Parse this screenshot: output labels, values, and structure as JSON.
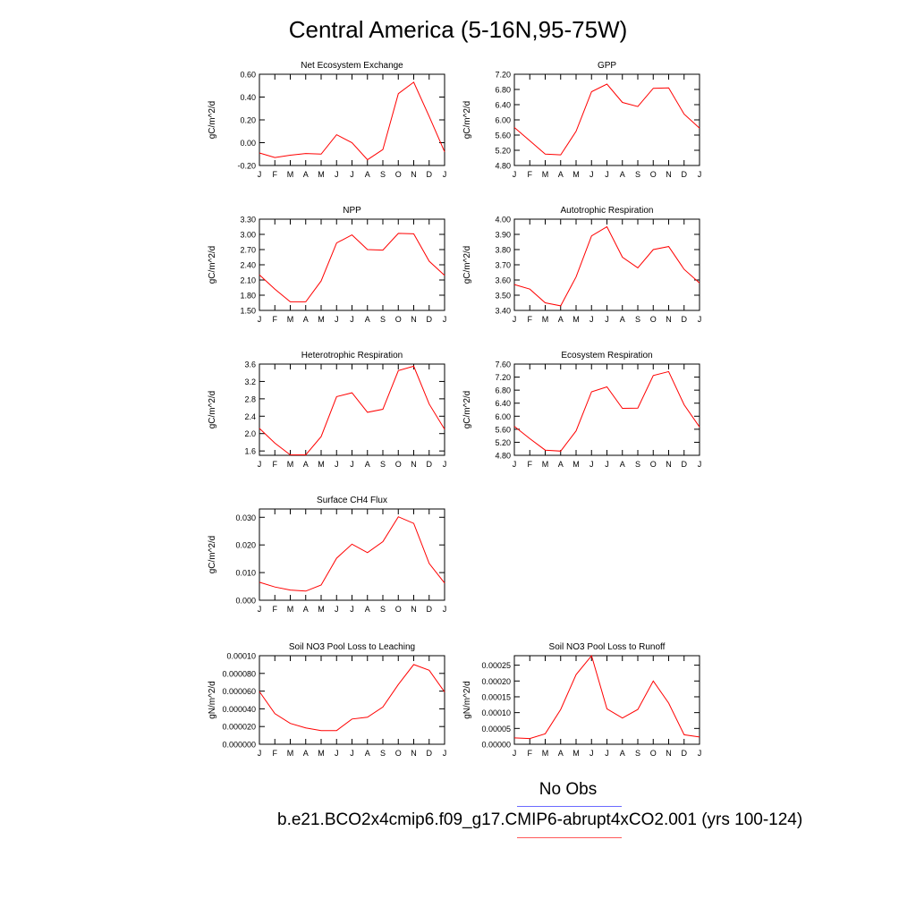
{
  "title": "Central America (5-16N,95-75W)",
  "legend": {
    "obs_label": "No Obs",
    "obs_color": "#6b6bff",
    "model_label": "b.e21.BCO2x4cmip6.f09_g17.CMIP6-abrupt4xCO2.001 (yrs 100-124)",
    "model_color": "#ff0000"
  },
  "chart_data": [
    {
      "type": "line",
      "title": "Net Ecosystem Exchange",
      "ylabel": "gC/m^2/d",
      "x": [
        "J",
        "F",
        "M",
        "A",
        "M",
        "J",
        "J",
        "A",
        "S",
        "O",
        "N",
        "D",
        "J"
      ],
      "ylim": [
        -0.2,
        0.6
      ],
      "yticks": [
        "-0.20",
        "0.00",
        "0.20",
        "0.40",
        "0.60"
      ],
      "series": [
        {
          "values": [
            -0.09,
            -0.13,
            -0.11,
            -0.095,
            -0.1,
            0.07,
            0.0,
            -0.15,
            -0.06,
            0.43,
            0.53,
            0.23,
            -0.08
          ]
        }
      ]
    },
    {
      "type": "line",
      "title": "GPP",
      "ylabel": "gC/m^2/d",
      "x": [
        "J",
        "F",
        "M",
        "A",
        "M",
        "J",
        "J",
        "A",
        "S",
        "O",
        "N",
        "D",
        "J"
      ],
      "ylim": [
        4.8,
        7.2
      ],
      "yticks": [
        "4.80",
        "5.20",
        "5.60",
        "6.00",
        "6.40",
        "6.80",
        "7.20"
      ],
      "series": [
        {
          "values": [
            5.8,
            5.45,
            5.1,
            5.08,
            5.7,
            6.74,
            6.94,
            6.46,
            6.35,
            6.83,
            6.84,
            6.15,
            5.78
          ]
        }
      ]
    },
    {
      "type": "line",
      "title": "NPP",
      "ylabel": "gC/m^2/d",
      "x": [
        "J",
        "F",
        "M",
        "A",
        "M",
        "J",
        "J",
        "A",
        "S",
        "O",
        "N",
        "D",
        "J"
      ],
      "ylim": [
        1.5,
        3.3
      ],
      "yticks": [
        "1.50",
        "1.80",
        "2.10",
        "2.40",
        "2.70",
        "3.00",
        "3.30"
      ],
      "series": [
        {
          "values": [
            2.2,
            1.92,
            1.67,
            1.67,
            2.08,
            2.83,
            2.99,
            2.7,
            2.69,
            3.02,
            3.01,
            2.47,
            2.19
          ]
        }
      ]
    },
    {
      "type": "line",
      "title": "Autotrophic Respiration",
      "ylabel": "gC/m^2/d",
      "x": [
        "J",
        "F",
        "M",
        "A",
        "M",
        "J",
        "J",
        "A",
        "S",
        "O",
        "N",
        "D",
        "J"
      ],
      "ylim": [
        3.4,
        4.0
      ],
      "yticks": [
        "3.40",
        "3.50",
        "3.60",
        "3.70",
        "3.80",
        "3.90",
        "4.00"
      ],
      "series": [
        {
          "values": [
            3.57,
            3.54,
            3.45,
            3.43,
            3.62,
            3.89,
            3.95,
            3.75,
            3.68,
            3.8,
            3.82,
            3.67,
            3.58
          ]
        }
      ]
    },
    {
      "type": "line",
      "title": "Heterotrophic Respiration",
      "ylabel": "gC/m^2/d",
      "x": [
        "J",
        "F",
        "M",
        "A",
        "M",
        "J",
        "J",
        "A",
        "S",
        "O",
        "N",
        "D",
        "J"
      ],
      "ylim": [
        1.5,
        3.6
      ],
      "yticks": [
        "1.6",
        "2.0",
        "2.4",
        "2.8",
        "3.2",
        "3.6"
      ],
      "series": [
        {
          "values": [
            2.12,
            1.78,
            1.51,
            1.51,
            1.93,
            2.85,
            2.94,
            2.49,
            2.56,
            3.45,
            3.55,
            2.68,
            2.1
          ]
        }
      ]
    },
    {
      "type": "line",
      "title": "Ecosystem Respiration",
      "ylabel": "gC/m^2/d",
      "x": [
        "J",
        "F",
        "M",
        "A",
        "M",
        "J",
        "J",
        "A",
        "S",
        "O",
        "N",
        "D",
        "J"
      ],
      "ylim": [
        4.8,
        7.6
      ],
      "yticks": [
        "4.80",
        "5.20",
        "5.60",
        "6.00",
        "6.40",
        "6.80",
        "7.20",
        "7.60"
      ],
      "series": [
        {
          "values": [
            5.69,
            5.31,
            4.96,
            4.93,
            5.55,
            6.75,
            6.9,
            6.24,
            6.25,
            7.25,
            7.37,
            6.35,
            5.67
          ]
        }
      ]
    },
    {
      "type": "line",
      "title": "Surface CH4 Flux",
      "ylabel": "gC/m^2/d",
      "x": [
        "J",
        "F",
        "M",
        "A",
        "M",
        "J",
        "J",
        "A",
        "S",
        "O",
        "N",
        "D",
        "J"
      ],
      "ylim": [
        0,
        0.033
      ],
      "yticks": [
        "0.000",
        "0.010",
        "0.020",
        "0.030"
      ],
      "series": [
        {
          "values": [
            0.0065,
            0.0048,
            0.0037,
            0.0033,
            0.0055,
            0.0152,
            0.0203,
            0.0172,
            0.0212,
            0.0302,
            0.0278,
            0.0133,
            0.0062
          ]
        }
      ]
    },
    {
      "type": "line",
      "title": "Soil NO3 Pool Loss to Leaching",
      "ylabel": "gN/m^2/d",
      "x": [
        "J",
        "F",
        "M",
        "A",
        "M",
        "J",
        "J",
        "A",
        "S",
        "O",
        "N",
        "D",
        "J"
      ],
      "ylim": [
        0,
        0.0001
      ],
      "yticks": [
        "0.000000",
        "0.000020",
        "0.000040",
        "0.000060",
        "0.000080",
        "0.00010"
      ],
      "series": [
        {
          "values": [
            5.95e-05,
            3.45e-05,
            2.35e-05,
            1.85e-05,
            1.55e-05,
            1.55e-05,
            2.85e-05,
            3.05e-05,
            4.2e-05,
            6.75e-05,
            9e-05,
            8.35e-05,
            5.9e-05
          ]
        }
      ]
    },
    {
      "type": "line",
      "title": "Soil NO3 Pool Loss to Runoff",
      "ylabel": "gN/m^2/d",
      "x": [
        "J",
        "F",
        "M",
        "A",
        "M",
        "J",
        "J",
        "A",
        "S",
        "O",
        "N",
        "D",
        "J"
      ],
      "ylim": [
        0,
        0.00028
      ],
      "yticks": [
        "0.00000",
        "0.00005",
        "0.00010",
        "0.00015",
        "0.00020",
        "0.00025"
      ],
      "series": [
        {
          "values": [
            2e-05,
            1.8e-05,
            3.3e-05,
            0.00011,
            0.00022,
            0.00028,
            0.000112,
            8.3e-05,
            0.00011,
            0.0002,
            0.00013,
            3e-05,
            2.3e-05
          ]
        }
      ]
    }
  ]
}
